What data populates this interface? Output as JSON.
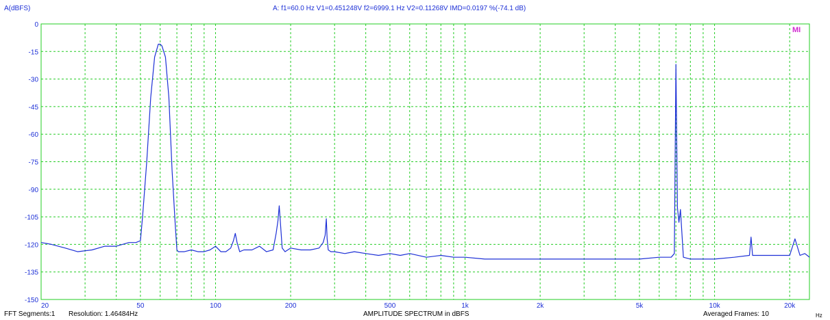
{
  "header": {
    "ylabel": "A(dBFS)",
    "measurement": "A: f1=60.0 Hz V1=0.451248V f2=6999.1 Hz V2=0.11268V IMD=0.0197 %(-74.1 dB)"
  },
  "footer": {
    "fft_segments": "FFT Segments:1",
    "resolution": "Resolution: 1.46484Hz",
    "title": "AMPLITUDE SPECTRUM in dBFS",
    "averaged_frames": "Averaged Frames: 10",
    "x_unit": "Hz"
  },
  "logo_text": "MI",
  "colors": {
    "trace": "#1c2fd6",
    "grid": "#22cc22",
    "label": "#1c2fd6",
    "logo": "#d12ad1"
  },
  "chart_data": {
    "type": "line",
    "xscale": "log",
    "xlim": [
      20,
      24000
    ],
    "ylim": [
      -150,
      0
    ],
    "xlabel": "Hz",
    "ylabel": "A(dBFS)",
    "title": "AMPLITUDE SPECTRUM in dBFS",
    "grid": true,
    "y_ticks": [
      "0",
      "-15",
      "-30",
      "-45",
      "-60",
      "-75",
      "-90",
      "-105",
      "-120",
      "-135",
      "-150"
    ],
    "x_ticks": [
      {
        "v": 20,
        "label": "20"
      },
      {
        "v": 50,
        "label": "50"
      },
      {
        "v": 100,
        "label": "100"
      },
      {
        "v": 200,
        "label": "200"
      },
      {
        "v": 500,
        "label": "500"
      },
      {
        "v": 1000,
        "label": "1k"
      },
      {
        "v": 2000,
        "label": "2k"
      },
      {
        "v": 5000,
        "label": "5k"
      },
      {
        "v": 10000,
        "label": "10k"
      },
      {
        "v": 20000,
        "label": "20k"
      }
    ],
    "series": [
      {
        "x": [
          20,
          22,
          25,
          28,
          32,
          36,
          40,
          45,
          48,
          50,
          51,
          53,
          55,
          57,
          59,
          60,
          61,
          63,
          65,
          67,
          69,
          70,
          71,
          75,
          80,
          85,
          90,
          95,
          100,
          105,
          110,
          115,
          118,
          120,
          122,
          125,
          130,
          140,
          150,
          160,
          170,
          175,
          178,
          180,
          182,
          185,
          190,
          200,
          220,
          240,
          260,
          270,
          275,
          278,
          280,
          283,
          290,
          300,
          330,
          360,
          400,
          450,
          500,
          550,
          600,
          700,
          800,
          900,
          1000,
          1200,
          1500,
          2000,
          2500,
          3000,
          4000,
          5000,
          6000,
          6700,
          6900,
          6999,
          7100,
          7200,
          7300,
          7500,
          8000,
          9000,
          10000,
          12000,
          13800,
          14000,
          14200,
          16000,
          18000,
          20000,
          21000,
          22000,
          23000,
          23500,
          24000
        ],
        "y": [
          -119,
          -120,
          -122,
          -124,
          -123,
          -121,
          -121,
          -119,
          -119,
          -118,
          -105,
          -75,
          -40,
          -18,
          -11,
          -11,
          -12,
          -18,
          -40,
          -80,
          -110,
          -123,
          -124,
          -124,
          -123,
          -124,
          -124,
          -123,
          -121,
          -124,
          -124,
          -122,
          -118,
          -114,
          -119,
          -124,
          -123,
          -123,
          -121,
          -124,
          -123,
          -114,
          -107,
          -99,
          -108,
          -122,
          -124,
          -122,
          -123,
          -123,
          -122,
          -119,
          -115,
          -106,
          -117,
          -123,
          -124,
          -124,
          -125,
          -124,
          -125,
          -126,
          -125,
          -126,
          -125,
          -127,
          -126,
          -127,
          -127,
          -128,
          -128,
          -128,
          -128,
          -128,
          -128,
          -128,
          -127,
          -127,
          -125,
          -22,
          -100,
          -108,
          -101,
          -127,
          -128,
          -128,
          -128,
          -127,
          -126,
          -116,
          -126,
          -126,
          -126,
          -126,
          -117,
          -126,
          -125,
          -126,
          -127
        ]
      }
    ]
  }
}
